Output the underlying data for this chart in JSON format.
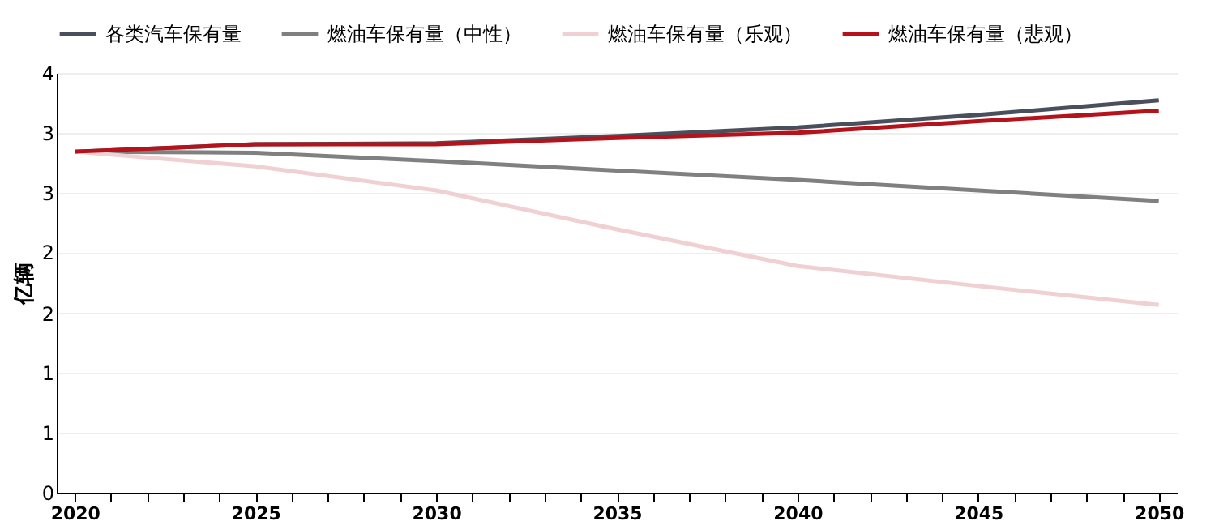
{
  "chart_data": {
    "type": "line",
    "ylabel": "亿辆",
    "x": [
      2020,
      2025,
      2030,
      2035,
      2040,
      2045,
      2050
    ],
    "series": [
      {
        "name": "各类汽车保有量",
        "color": "#4a4f5c",
        "values": [
          3.25,
          3.32,
          3.33,
          3.4,
          3.48,
          3.6,
          3.74
        ]
      },
      {
        "name": "燃油车保有量（中性）",
        "color": "#808080",
        "values": [
          3.25,
          3.24,
          3.16,
          3.07,
          2.98,
          2.88,
          2.78
        ]
      },
      {
        "name": "燃油车保有量（乐观）",
        "color": "#f0d0d3",
        "values": [
          3.25,
          3.11,
          2.88,
          2.51,
          2.16,
          1.97,
          1.79
        ]
      },
      {
        "name": "燃油车保有量（悲观）",
        "color": "#b5121b",
        "values": [
          3.25,
          3.32,
          3.32,
          3.38,
          3.43,
          3.54,
          3.64
        ]
      }
    ],
    "xlim": [
      2019.5,
      2050.5
    ],
    "xticks": [
      2020,
      {
        "value": 2021,
        "label": null
      },
      {
        "value": 2022,
        "label": null
      },
      {
        "value": 2023,
        "label": null
      },
      {
        "value": 2024,
        "label": null
      },
      2025,
      {
        "value": 2026,
        "label": null
      },
      {
        "value": 2027,
        "label": null
      },
      {
        "value": 2028,
        "label": null
      },
      {
        "value": 2029,
        "label": null
      },
      2030,
      {
        "value": 2031,
        "label": null
      },
      {
        "value": 2032,
        "label": null
      },
      {
        "value": 2033,
        "label": null
      },
      {
        "value": 2034,
        "label": null
      },
      2035,
      {
        "value": 2036,
        "label": null
      },
      {
        "value": 2037,
        "label": null
      },
      {
        "value": 2038,
        "label": null
      },
      {
        "value": 2039,
        "label": null
      },
      2040,
      {
        "value": 2041,
        "label": null
      },
      {
        "value": 2042,
        "label": null
      },
      {
        "value": 2043,
        "label": null
      },
      {
        "value": 2044,
        "label": null
      },
      2045,
      {
        "value": 2046,
        "label": null
      },
      {
        "value": 2047,
        "label": null
      },
      {
        "value": 2048,
        "label": null
      },
      {
        "value": 2049,
        "label": null
      },
      2050
    ],
    "ylim": [
      0,
      4
    ],
    "yticks": [
      0,
      {
        "value": 0.57,
        "label": "1"
      },
      {
        "value": 1.14,
        "label": "1"
      },
      {
        "value": 1.71,
        "label": "2"
      },
      {
        "value": 2.29,
        "label": "2"
      },
      {
        "value": 2.86,
        "label": "3"
      },
      {
        "value": 3.43,
        "label": "3"
      },
      4
    ],
    "grid": "y",
    "legend": "top",
    "marker": "none",
    "line_style": "solid"
  }
}
